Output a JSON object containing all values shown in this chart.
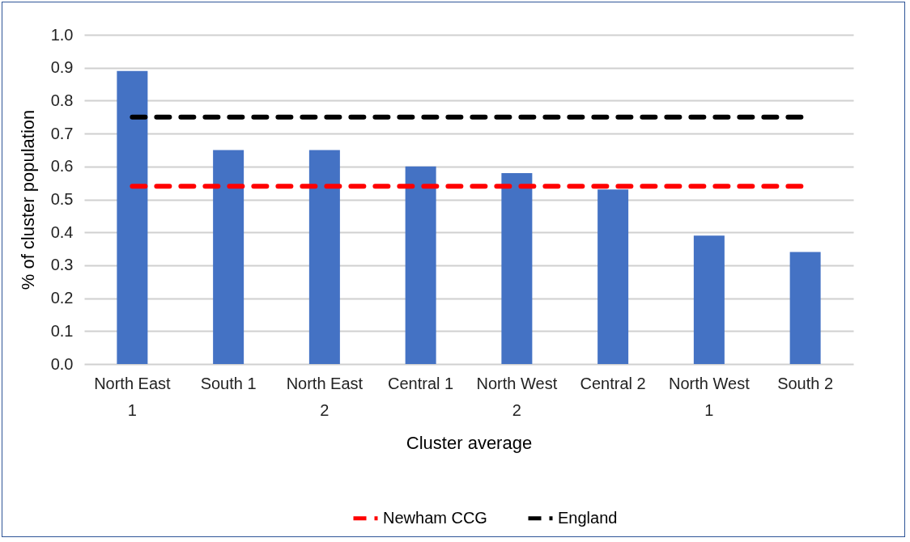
{
  "chart_data": {
    "type": "bar",
    "xlabel": "Cluster average",
    "ylabel": "% of cluster population",
    "categories": [
      "North East 1",
      "South 1",
      "North East 2",
      "Central 1",
      "North West 2",
      "Central 2",
      "North West 1",
      "South 2"
    ],
    "series": [
      {
        "color": "#4472c4",
        "values": [
          0.89,
          0.65,
          0.65,
          0.6,
          0.58,
          0.53,
          0.39,
          0.34
        ]
      },
      {
        "type": "line",
        "name": "Newham CCG",
        "color": "#ff0000",
        "line_style": "dashed",
        "values": [
          0.54,
          0.54,
          0.54,
          0.54,
          0.54,
          0.54,
          0.54,
          0.54
        ]
      },
      {
        "type": "line",
        "name": "England",
        "color": "#000000",
        "line_style": "dashed",
        "values": [
          0.75,
          0.75,
          0.75,
          0.75,
          0.75,
          0.75,
          0.75,
          0.75
        ]
      }
    ],
    "ylim": [
      0,
      1
    ],
    "yticks": [
      {
        "value": 0,
        "label": "0.0"
      },
      {
        "value": 0.1,
        "label": "0.1"
      },
      {
        "value": 0.2,
        "label": "0.2"
      },
      {
        "value": 0.3,
        "label": "0.3"
      },
      {
        "value": 0.4,
        "label": "0.4"
      },
      {
        "value": 0.5,
        "label": "0.5"
      },
      {
        "value": 0.6,
        "label": "0.6"
      },
      {
        "value": 0.7,
        "label": "0.7"
      },
      {
        "value": 0.8,
        "label": "0.8"
      },
      {
        "value": 0.9,
        "label": "0.9"
      },
      {
        "value": 1,
        "label": "1.0"
      }
    ],
    "grid": "y",
    "legend": "bottom",
    "marker": "none"
  }
}
